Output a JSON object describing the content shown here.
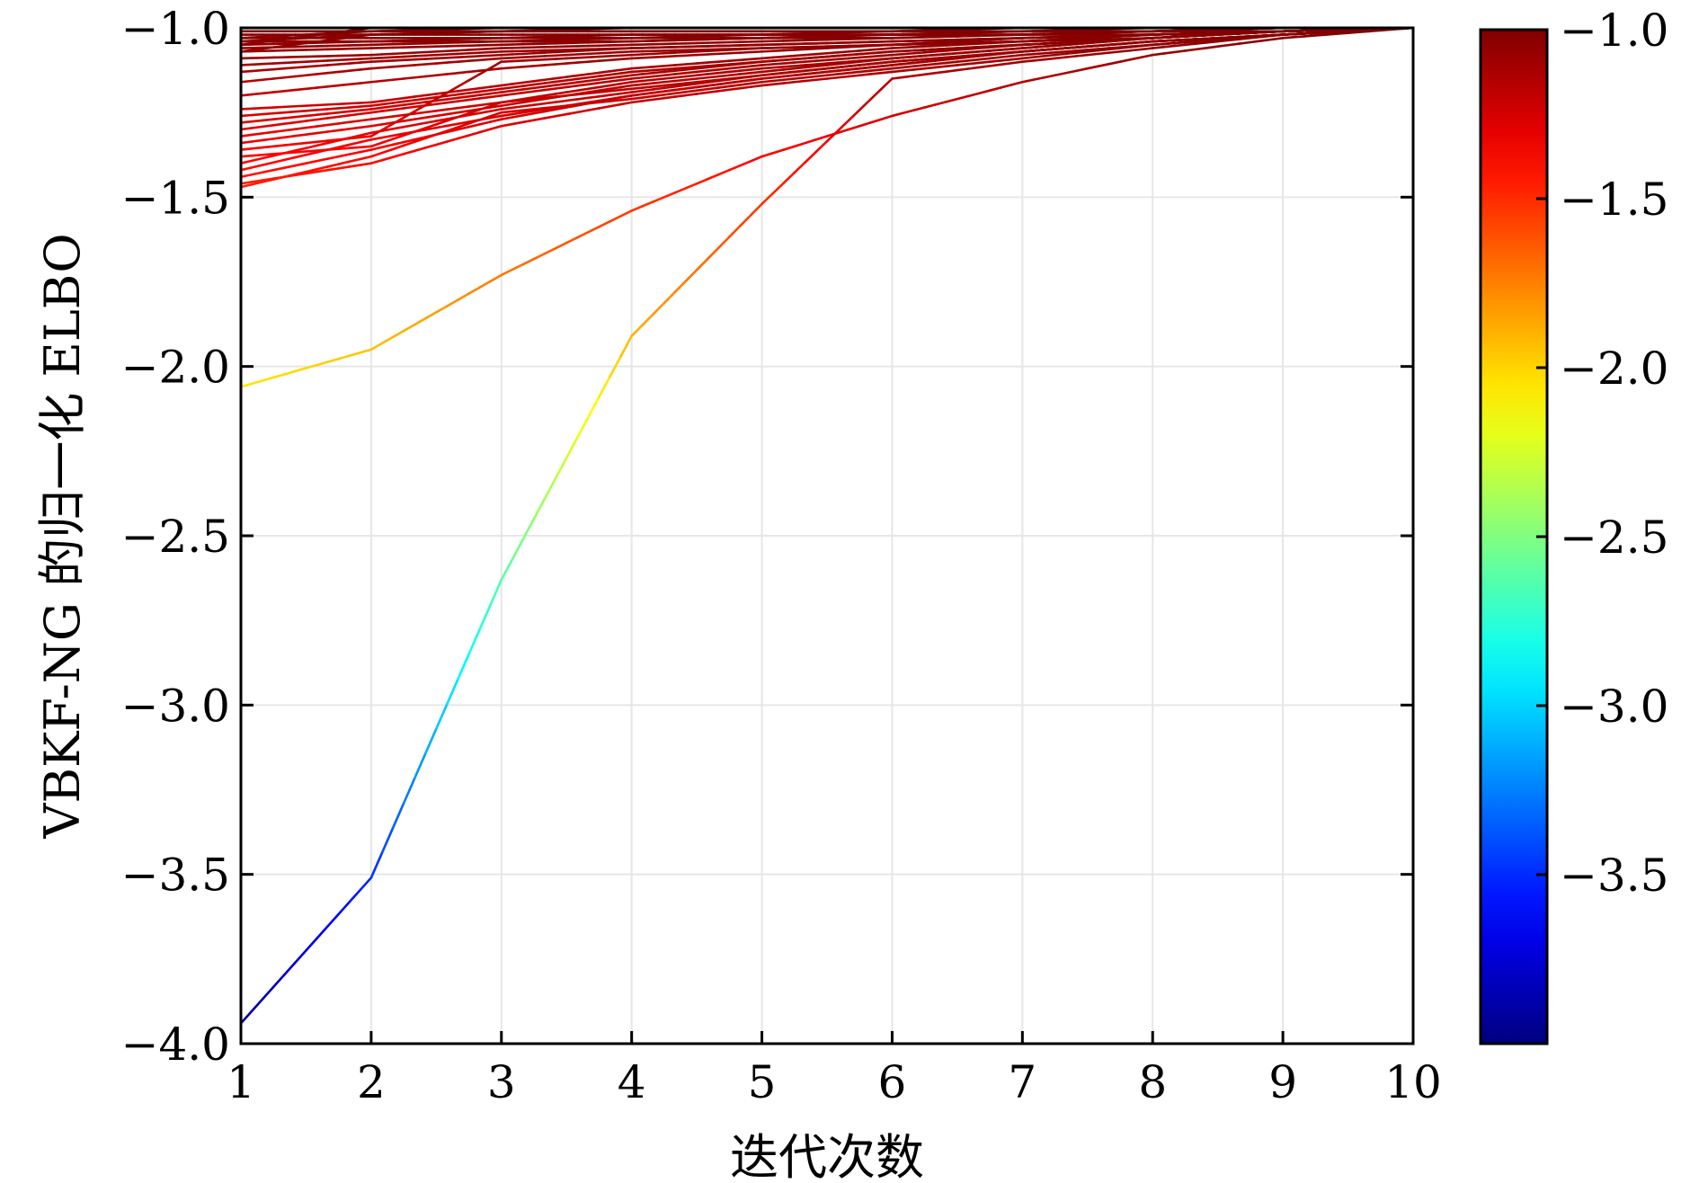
{
  "chart_data": {
    "type": "line",
    "xlabel": "迭代次数",
    "ylabel": "VBKF-NG 的归一化 ELBO",
    "xlim": [
      1,
      10
    ],
    "ylim": [
      -4.0,
      -1.0
    ],
    "x_ticks": [
      1,
      2,
      3,
      4,
      5,
      6,
      7,
      8,
      9,
      10
    ],
    "x_tick_labels": [
      "1",
      "2",
      "3",
      "4",
      "5",
      "6",
      "7",
      "8",
      "9",
      "10"
    ],
    "y_ticks": [
      -1.0,
      -1.5,
      -2.0,
      -2.5,
      -3.0,
      -3.5,
      -4.0
    ],
    "y_tick_labels": [
      "−1.0",
      "−1.5",
      "−2.0",
      "−2.5",
      "−3.0",
      "−3.5",
      "−4.0"
    ],
    "grid": true,
    "colormap": "jet",
    "line_color_by": "y-value",
    "colorbar": {
      "range": [
        -4.0,
        -1.0
      ],
      "ticks": [
        -1.0,
        -1.5,
        -2.0,
        -2.5,
        -3.0,
        -3.5
      ],
      "tick_labels": [
        "−1.0",
        "−1.5",
        "−2.0",
        "−2.5",
        "−3.0",
        "−3.5"
      ],
      "placement": "right"
    },
    "x": [
      1,
      2,
      3,
      4,
      5,
      6,
      7,
      8,
      9,
      10
    ],
    "series": [
      {
        "values": [
          -3.94,
          -3.51,
          -2.63,
          -1.91,
          -1.52,
          -1.15,
          -1.1,
          -1.06,
          -1.02,
          -1.0
        ]
      },
      {
        "values": [
          -2.06,
          -1.95,
          -1.73,
          -1.54,
          -1.38,
          -1.26,
          -1.16,
          -1.08,
          -1.03,
          -1.0
        ]
      },
      {
        "values": [
          -1.47,
          -1.38,
          -1.25,
          -1.21,
          -1.16,
          -1.12,
          -1.08,
          -1.05,
          -1.02,
          -1.0
        ]
      },
      {
        "values": [
          -1.46,
          -1.4,
          -1.29,
          -1.22,
          -1.17,
          -1.13,
          -1.09,
          -1.05,
          -1.02,
          -1.0
        ]
      },
      {
        "values": [
          -1.44,
          -1.36,
          -1.27,
          -1.2,
          -1.15,
          -1.11,
          -1.07,
          -1.04,
          -1.02,
          -1.0
        ]
      },
      {
        "values": [
          -1.42,
          -1.33,
          -1.26,
          -1.2,
          -1.15,
          -1.11,
          -1.07,
          -1.04,
          -1.02,
          -1.0
        ]
      },
      {
        "values": [
          -1.4,
          -1.31,
          -1.24,
          -1.19,
          -1.14,
          -1.1,
          -1.07,
          -1.04,
          -1.02,
          -1.0
        ]
      },
      {
        "values": [
          -1.38,
          -1.35,
          -1.22,
          -1.18,
          -1.14,
          -1.1,
          -1.07,
          -1.04,
          -1.02,
          -1.0
        ]
      },
      {
        "values": [
          -1.36,
          -1.32,
          -1.1,
          -1.08,
          -1.06,
          -1.05,
          -1.04,
          -1.03,
          -1.01,
          -1.0
        ]
      },
      {
        "values": [
          -1.34,
          -1.29,
          -1.23,
          -1.17,
          -1.13,
          -1.09,
          -1.06,
          -1.03,
          -1.01,
          -1.0
        ]
      },
      {
        "values": [
          -1.32,
          -1.27,
          -1.22,
          -1.16,
          -1.12,
          -1.09,
          -1.06,
          -1.03,
          -1.01,
          -1.0
        ]
      },
      {
        "values": [
          -1.3,
          -1.25,
          -1.2,
          -1.15,
          -1.11,
          -1.08,
          -1.05,
          -1.03,
          -1.01,
          -1.0
        ]
      },
      {
        "values": [
          -1.28,
          -1.24,
          -1.19,
          -1.14,
          -1.1,
          -1.07,
          -1.05,
          -1.03,
          -1.01,
          -1.0
        ]
      },
      {
        "values": [
          -1.26,
          -1.23,
          -1.18,
          -1.13,
          -1.1,
          -1.07,
          -1.05,
          -1.03,
          -1.01,
          -1.0
        ]
      },
      {
        "values": [
          -1.24,
          -1.22,
          -1.17,
          -1.12,
          -1.09,
          -1.06,
          -1.04,
          -1.02,
          -1.01,
          -1.0
        ]
      },
      {
        "values": [
          -1.2,
          -1.16,
          -1.12,
          -1.09,
          -1.07,
          -1.05,
          -1.04,
          -1.02,
          -1.01,
          -1.0
        ]
      },
      {
        "values": [
          -1.16,
          -1.12,
          -1.09,
          -1.07,
          -1.06,
          -1.05,
          -1.03,
          -1.02,
          -1.01,
          -1.0
        ]
      },
      {
        "values": [
          -1.13,
          -1.1,
          -1.08,
          -1.06,
          -1.05,
          -1.04,
          -1.03,
          -1.02,
          -1.01,
          -1.0
        ]
      },
      {
        "values": [
          -1.11,
          -1.09,
          -1.07,
          -1.06,
          -1.05,
          -1.04,
          -1.03,
          -1.02,
          -1.01,
          -1.0
        ]
      },
      {
        "values": [
          -1.09,
          -1.08,
          -1.06,
          -1.05,
          -1.04,
          -1.03,
          -1.02,
          -1.02,
          -1.01,
          -1.0
        ]
      },
      {
        "values": [
          -1.07,
          -1.06,
          -1.05,
          -1.04,
          -1.03,
          -1.03,
          -1.02,
          -1.01,
          -1.01,
          -1.0
        ]
      },
      {
        "values": [
          -1.06,
          -1.05,
          -1.04,
          -1.04,
          -1.03,
          -1.02,
          -1.02,
          -1.01,
          -1.01,
          -1.0
        ]
      },
      {
        "values": [
          -1.05,
          -1.04,
          -1.04,
          -1.03,
          -1.03,
          -1.02,
          -1.02,
          -1.01,
          -1.0,
          -1.0
        ]
      },
      {
        "values": [
          -1.04,
          -1.04,
          -1.03,
          -1.03,
          -1.02,
          -1.02,
          -1.01,
          -1.01,
          -1.0,
          -1.0
        ]
      },
      {
        "values": [
          -1.03,
          -1.03,
          -1.03,
          -1.02,
          -1.02,
          -1.02,
          -1.01,
          -1.01,
          -1.0,
          -1.0
        ]
      },
      {
        "values": [
          -1.02,
          -1.02,
          -1.02,
          -1.02,
          -1.02,
          -1.01,
          -1.01,
          -1.01,
          -1.0,
          -1.0
        ]
      },
      {
        "values": [
          -1.01,
          -1.01,
          -1.01,
          -1.01,
          -1.01,
          -1.01,
          -1.01,
          -1.0,
          -1.0,
          -1.0
        ]
      },
      {
        "values": [
          -1.0,
          -1.0,
          -1.0,
          -1.0,
          -1.0,
          -1.0,
          -1.0,
          -1.0,
          -1.0,
          -1.0
        ]
      },
      {
        "values": [
          -1.07,
          -1.02,
          -1.01,
          -1.01,
          -1.01,
          -1.01,
          -1.0,
          -1.0,
          -1.0,
          -1.0
        ]
      },
      {
        "values": [
          -1.05,
          -1.0,
          -1.0,
          -1.0,
          -1.0,
          -1.0,
          -1.0,
          -1.0,
          -1.0,
          -1.0
        ]
      },
      {
        "values": [
          -1.03,
          -1.01,
          -1.0,
          -1.0,
          -1.0,
          -1.0,
          -1.0,
          -1.0,
          -1.0,
          -1.0
        ]
      },
      {
        "values": [
          -1.04,
          -1.02,
          -1.01,
          -1.0,
          -1.0,
          -1.0,
          -1.0,
          -1.0,
          -1.0,
          -1.0
        ]
      }
    ]
  }
}
